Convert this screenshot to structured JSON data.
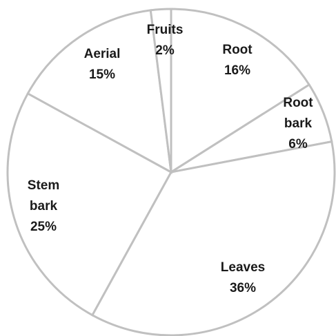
{
  "chart_data": {
    "type": "pie",
    "title": "",
    "start_angle_deg": 0,
    "direction": "clockwise",
    "slices": [
      {
        "lines": [
          "Root",
          "16%"
        ],
        "value": 16
      },
      {
        "lines": [
          "Root",
          "bark",
          "6%"
        ],
        "value": 6
      },
      {
        "lines": [
          "Leaves",
          "36%"
        ],
        "value": 36
      },
      {
        "lines": [
          "Stem",
          "bark",
          "25%"
        ],
        "value": 25
      },
      {
        "lines": [
          "Aerial",
          "15%"
        ],
        "value": 15
      },
      {
        "lines": [
          "Fruits",
          "2%"
        ],
        "value": 2
      }
    ],
    "colors": {
      "fill": "#ffffff",
      "stroke": "#c0c0c0",
      "text": "#1a1a1a"
    }
  }
}
